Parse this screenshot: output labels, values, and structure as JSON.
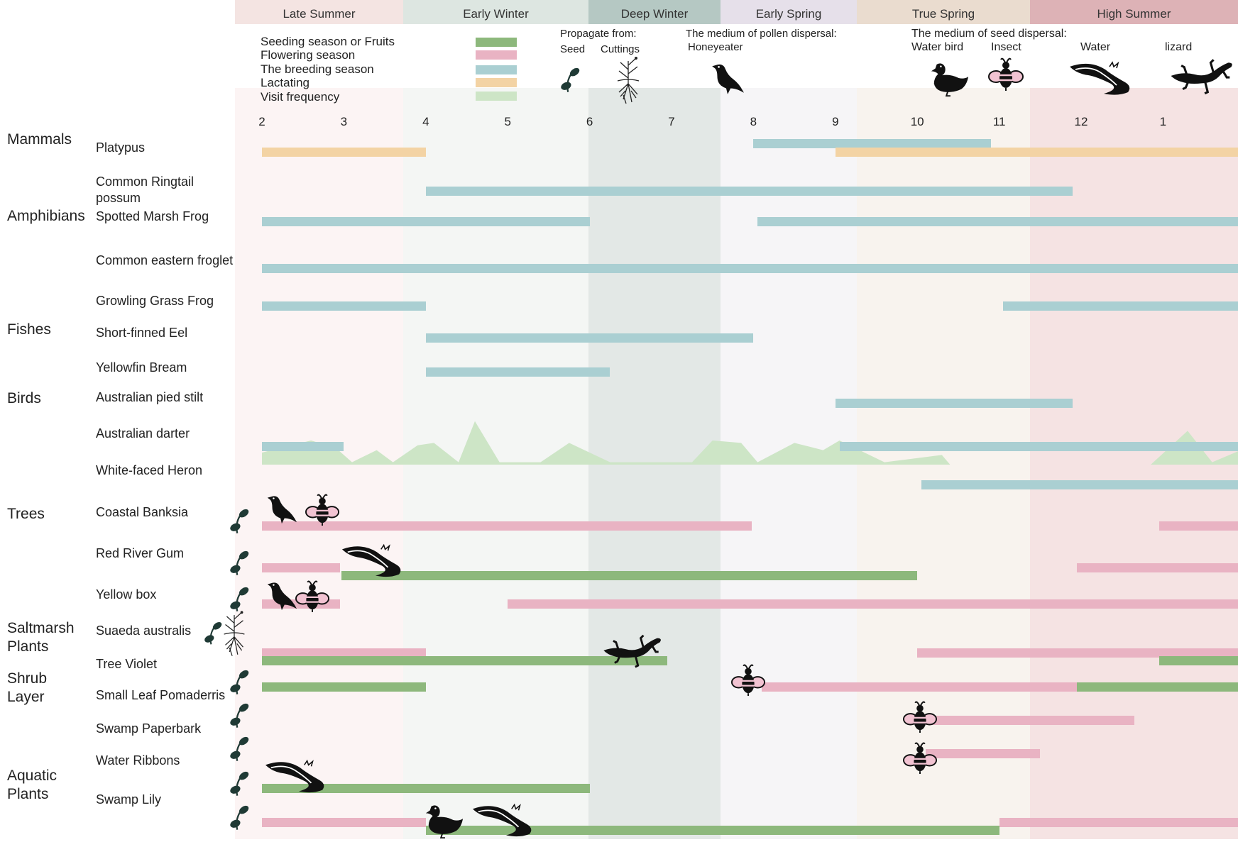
{
  "colors": {
    "seeding": "#8db87c",
    "flowering": "#e9b3c3",
    "breeding": "#aacfd2",
    "lactating": "#f3d3a4",
    "visit": "#cde5c6"
  },
  "seasons": [
    {
      "name": "Late Summer",
      "head": "#f4e4e2",
      "band": "#fcf4f4"
    },
    {
      "name": "Early Winter",
      "head": "#dde6e1",
      "band": "#f4f6f4"
    },
    {
      "name": "Deep Winter",
      "head": "#b5c8c3",
      "band": "#e3e8e6"
    },
    {
      "name": "Early Spring",
      "head": "#e6e0ea",
      "band": "#f6f5f7"
    },
    {
      "name": "True Spring",
      "head": "#eadccf",
      "band": "#f8f3ee"
    },
    {
      "name": "High Summer",
      "head": "#ddb2b6",
      "band": "#f5e3e3"
    }
  ],
  "legend": {
    "seeding": "Seeding season or Fruits",
    "flowering": "Flowering season",
    "breeding": "The breeding season",
    "lactating": "Lactating",
    "visit": "Visit frequency",
    "propagate_title": "Propagate from:",
    "seed": "Seed",
    "cuttings": "Cuttings",
    "pollen_title": "The medium of pollen dispersal:",
    "honeyeater": "Honeyeater",
    "seed_dispersal_title": "The medium of seed dispersal:",
    "water_bird": "Water bird",
    "insect": "Insect",
    "water": "Water",
    "lizard": "lizard"
  },
  "months": [
    "2",
    "3",
    "4",
    "5",
    "6",
    "7",
    "8",
    "9",
    "10",
    "11",
    "12",
    "1"
  ],
  "groups": [
    {
      "label": "Mammals"
    },
    {
      "label": "Amphibians"
    },
    {
      "label": "Fishes"
    },
    {
      "label": "Birds"
    },
    {
      "label": "Trees"
    },
    {
      "label": "Saltmarsh\nPlants"
    },
    {
      "label": "Shrub\nLayer"
    },
    {
      "label": "Aquatic\nPlants"
    }
  ],
  "species": [
    {
      "name": "Platypus",
      "group": "Mammals",
      "bars": [
        {
          "type": "lactating",
          "start": 2.0,
          "end": 4.0
        },
        {
          "type": "breeding",
          "start": 8.0,
          "end": 10.9
        },
        {
          "type": "lactating",
          "start": 9.0,
          "end": 13.95
        }
      ]
    },
    {
      "name": "Common Ringtail possum",
      "group": "Mammals",
      "bars": [
        {
          "type": "breeding",
          "start": 4.0,
          "end": 11.9
        }
      ]
    },
    {
      "name": "Spotted Marsh Frog",
      "group": "Amphibians",
      "bars": [
        {
          "type": "breeding",
          "start": 2.0,
          "end": 6.0
        },
        {
          "type": "breeding",
          "start": 8.05,
          "end": 13.95
        }
      ]
    },
    {
      "name": "Common eastern froglet",
      "group": "Amphibians",
      "bars": [
        {
          "type": "breeding",
          "start": 2.0,
          "end": 13.95
        }
      ]
    },
    {
      "name": "Growling Grass Frog",
      "group": "Amphibians",
      "bars": [
        {
          "type": "breeding",
          "start": 2.0,
          "end": 4.0
        },
        {
          "type": "breeding",
          "start": 11.05,
          "end": 13.95
        }
      ]
    },
    {
      "name": "Short-finned Eel",
      "group": "Fishes",
      "bars": [
        {
          "type": "breeding",
          "start": 4.0,
          "end": 8.0
        }
      ]
    },
    {
      "name": "Yellowfin Bream",
      "group": "Fishes",
      "bars": [
        {
          "type": "breeding",
          "start": 4.0,
          "end": 6.25
        }
      ]
    },
    {
      "name": "Australian pied stilt",
      "group": "Birds",
      "bars": [
        {
          "type": "breeding",
          "start": 9.0,
          "end": 11.9
        }
      ]
    },
    {
      "name": "Australian darter",
      "group": "Birds",
      "bars": [
        {
          "type": "breeding",
          "start": 2.0,
          "end": 3.0
        },
        {
          "type": "breeding",
          "start": 9.05,
          "end": 13.95
        }
      ]
    },
    {
      "name": "White-faced Heron",
      "group": "Birds",
      "bars": [
        {
          "type": "breeding",
          "start": 10.05,
          "end": 13.95
        }
      ]
    },
    {
      "name": "Coastal Banksia",
      "group": "Trees",
      "propagate": "Seed",
      "dispersal": [
        "Honeyeater",
        "Insect"
      ],
      "bars": [
        {
          "type": "flowering",
          "start": 2.0,
          "end": 7.98
        },
        {
          "type": "flowering",
          "start": 12.95,
          "end": 13.95
        }
      ]
    },
    {
      "name": "Red River Gum",
      "group": "Trees",
      "propagate": "Seed",
      "dispersal": [
        "Water"
      ],
      "bars": [
        {
          "type": "flowering",
          "start": 2.0,
          "end": 2.95
        },
        {
          "type": "seeding",
          "start": 2.97,
          "end": 10.0
        },
        {
          "type": "flowering",
          "start": 11.95,
          "end": 13.95
        }
      ]
    },
    {
      "name": "Yellow box",
      "group": "Trees",
      "propagate": "Seed",
      "dispersal": [
        "Honeyeater",
        "Insect"
      ],
      "bars": [
        {
          "type": "flowering",
          "start": 2.0,
          "end": 2.95
        },
        {
          "type": "flowering",
          "start": 5.0,
          "end": 13.95
        }
      ]
    },
    {
      "name": "Suaeda australis",
      "group": "Saltmarsh Plants",
      "propagate": "Seed, Cuttings",
      "dispersal": [
        "lizard"
      ],
      "bars": [
        {
          "type": "flowering",
          "start": 2.0,
          "end": 4.0
        },
        {
          "type": "seeding",
          "start": 2.0,
          "end": 6.95
        },
        {
          "type": "flowering",
          "start": 10.0,
          "end": 13.95
        },
        {
          "type": "seeding",
          "start": 12.95,
          "end": 13.95
        }
      ]
    },
    {
      "name": "Tree Violet",
      "group": "Shrub Layer",
      "propagate": "Seed",
      "dispersal": [
        "Insect"
      ],
      "bars": [
        {
          "type": "seeding",
          "start": 2.0,
          "end": 4.0
        },
        {
          "type": "flowering",
          "start": 8.1,
          "end": 11.95
        },
        {
          "type": "seeding",
          "start": 11.95,
          "end": 13.95
        }
      ]
    },
    {
      "name": "Small Leaf Pomaderris",
      "group": "Shrub Layer",
      "propagate": "Seed",
      "dispersal": [
        "Insect"
      ],
      "bars": [
        {
          "type": "flowering",
          "start": 10.1,
          "end": 12.65
        }
      ]
    },
    {
      "name": "Swamp Paperbark",
      "group": "Shrub Layer",
      "propagate": "Seed",
      "dispersal": [
        "Insect"
      ],
      "bars": [
        {
          "type": "flowering",
          "start": 10.1,
          "end": 11.5
        }
      ]
    },
    {
      "name": "Water Ribbons",
      "group": "Aquatic Plants",
      "propagate": "Seed",
      "dispersal": [
        "Water"
      ],
      "bars": [
        {
          "type": "seeding",
          "start": 2.0,
          "end": 6.0
        }
      ]
    },
    {
      "name": "Swamp Lily",
      "group": "Aquatic Plants",
      "propagate": "Seed",
      "dispersal": [
        "Water bird",
        "Water"
      ],
      "bars": [
        {
          "type": "flowering",
          "start": 2.0,
          "end": 4.0
        },
        {
          "type": "seeding",
          "start": 4.0,
          "end": 11.0
        },
        {
          "type": "flowering",
          "start": 11.0,
          "end": 13.95
        }
      ]
    }
  ],
  "visit_frequency": [
    {
      "x": 2.0,
      "v": 0.5
    },
    {
      "x": 2.6,
      "v": 1.0
    },
    {
      "x": 2.9,
      "v": 0.7
    },
    {
      "x": 3.1,
      "v": 0.1
    },
    {
      "x": 3.4,
      "v": 0.6
    },
    {
      "x": 3.6,
      "v": 0.1
    },
    {
      "x": 3.9,
      "v": 0.8
    },
    {
      "x": 4.1,
      "v": 0.9
    },
    {
      "x": 4.4,
      "v": 0.1
    },
    {
      "x": 4.6,
      "v": 1.8
    },
    {
      "x": 4.9,
      "v": 0.1
    },
    {
      "x": 5.4,
      "v": 0.1
    },
    {
      "x": 5.75,
      "v": 0.9
    },
    {
      "x": 6.25,
      "v": 0.1
    },
    {
      "x": 7.25,
      "v": 0.1
    },
    {
      "x": 7.5,
      "v": 1.0
    },
    {
      "x": 7.85,
      "v": 0.9
    },
    {
      "x": 8.05,
      "v": 0.1
    },
    {
      "x": 8.5,
      "v": 0.9
    },
    {
      "x": 8.85,
      "v": 0.6
    },
    {
      "x": 9.05,
      "v": 1.0
    },
    {
      "x": 9.6,
      "v": 0.1
    },
    {
      "x": 10.3,
      "v": 0.4
    },
    {
      "x": 10.4,
      "v": 0.0
    },
    {
      "x": 12.85,
      "v": 0.0
    },
    {
      "x": 13.3,
      "v": 1.4
    },
    {
      "x": 13.6,
      "v": 0.1
    },
    {
      "x": 13.95,
      "v": 0.6
    }
  ]
}
